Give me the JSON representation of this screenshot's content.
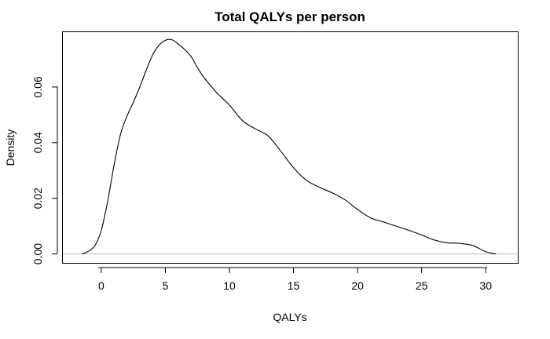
{
  "chart_data": {
    "type": "line",
    "title": "Total QALYs per person",
    "xlabel": "QALYs",
    "ylabel": "Density",
    "xlim": [
      -3,
      32.5
    ],
    "ylim": [
      -0.0035,
      0.08
    ],
    "x_ticks": [
      0,
      5,
      10,
      15,
      20,
      25,
      30
    ],
    "y_ticks": [
      0.0,
      0.02,
      0.04,
      0.06
    ],
    "x_tick_labels": [
      "0",
      "5",
      "10",
      "15",
      "20",
      "25",
      "30"
    ],
    "y_tick_labels": [
      "0.00",
      "0.02",
      "0.04",
      "0.06"
    ],
    "reference_line_y": 0,
    "grid": false,
    "series": [
      {
        "x": [
          -1.5,
          -1.0,
          -0.5,
          0,
          0.5,
          1.0,
          1.5,
          2.0,
          2.5,
          3.0,
          3.5,
          4.0,
          4.5,
          5.0,
          5.5,
          6.0,
          6.5,
          7.0,
          7.5,
          8.0,
          9.0,
          10.0,
          11.0,
          12.0,
          13.0,
          14.0,
          15.0,
          16.0,
          17.0,
          18.0,
          19.0,
          20.0,
          21.0,
          22.0,
          23.0,
          24.0,
          25.0,
          26.0,
          27.0,
          28.0,
          29.0,
          30.0,
          30.8
        ],
        "y": [
          0.0,
          0.001,
          0.003,
          0.0085,
          0.019,
          0.032,
          0.043,
          0.0495,
          0.0545,
          0.06,
          0.066,
          0.0715,
          0.075,
          0.0768,
          0.077,
          0.0755,
          0.0735,
          0.071,
          0.067,
          0.0635,
          0.058,
          0.0535,
          0.048,
          0.045,
          0.0425,
          0.037,
          0.031,
          0.0265,
          0.024,
          0.022,
          0.0195,
          0.016,
          0.013,
          0.0115,
          0.01,
          0.0085,
          0.0068,
          0.005,
          0.004,
          0.0038,
          0.003,
          0.0008,
          0.0
        ]
      }
    ]
  }
}
